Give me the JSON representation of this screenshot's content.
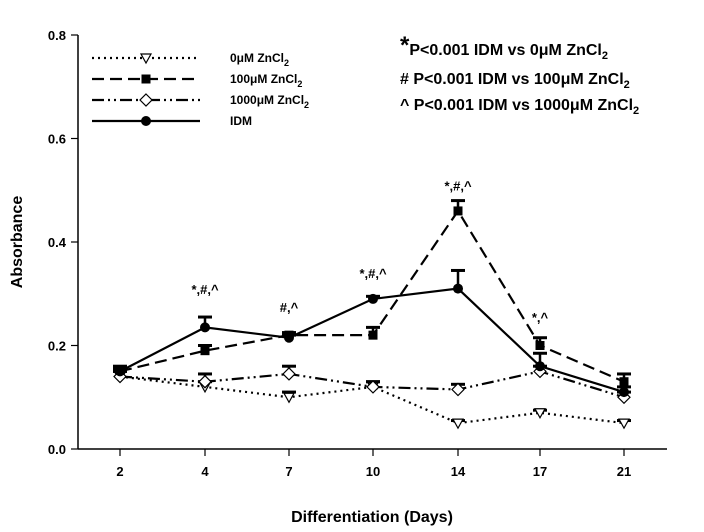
{
  "chart_data": {
    "type": "line",
    "xlabel": "Differentiation (Days)",
    "ylabel": "Absorbance",
    "categories": [
      "2",
      "4",
      "7",
      "10",
      "14",
      "17",
      "21"
    ],
    "ylim": [
      0,
      0.8
    ],
    "yticks": [
      "0.0",
      "0.2",
      "0.4",
      "0.6",
      "0.8"
    ],
    "grid": false,
    "legend_position": "top-left",
    "series": [
      {
        "name": "0μM ZnCl",
        "subscript": "2",
        "style": "dotted",
        "marker": "triangle-down-open",
        "values": [
          0.14,
          0.12,
          0.1,
          0.12,
          0.05,
          0.07,
          0.05
        ],
        "errors": [
          0.01,
          0.01,
          0.01,
          0.01,
          0.005,
          0.005,
          0.005
        ]
      },
      {
        "name": "100μM ZnCl",
        "subscript": "2",
        "style": "dashed",
        "marker": "square-filled",
        "values": [
          0.15,
          0.19,
          0.22,
          0.22,
          0.46,
          0.2,
          0.13
        ],
        "errors": [
          0.01,
          0.01,
          0.005,
          0.015,
          0.02,
          0.015,
          0.015
        ]
      },
      {
        "name": "1000μM ZnCl",
        "subscript": "2",
        "style": "dash-dot-dot",
        "marker": "diamond-open",
        "values": [
          0.14,
          0.13,
          0.145,
          0.12,
          0.115,
          0.15,
          0.1
        ],
        "errors": [
          0.01,
          0.015,
          0.015,
          0.01,
          0.01,
          0.01,
          0.01
        ]
      },
      {
        "name": "IDM",
        "subscript": "",
        "style": "solid",
        "marker": "circle-filled",
        "values": [
          0.15,
          0.235,
          0.215,
          0.29,
          0.31,
          0.16,
          0.11
        ],
        "errors": [
          0.005,
          0.02,
          0.005,
          0.005,
          0.035,
          0.025,
          0.01
        ]
      }
    ],
    "annotations": [
      {
        "x": "4",
        "y": 0.3,
        "text": "*,#,^"
      },
      {
        "x": "7",
        "y": 0.265,
        "text": "#,^"
      },
      {
        "x": "10",
        "y": 0.33,
        "text": "*,#,^"
      },
      {
        "x": "14",
        "y": 0.5,
        "text": "*,#,^"
      },
      {
        "x": "17",
        "y": 0.245,
        "text": "*,^"
      }
    ],
    "significance_notes": [
      {
        "symbol": "*",
        "text": "P<0.001 IDM vs 0μM ZnCl",
        "subscript": "2"
      },
      {
        "symbol": "#",
        "text": " P<0.001 IDM vs 100μM ZnCl",
        "subscript": "2"
      },
      {
        "symbol": "^",
        "text": " P<0.001 IDM vs 1000μM ZnCl",
        "subscript": "2"
      }
    ]
  }
}
